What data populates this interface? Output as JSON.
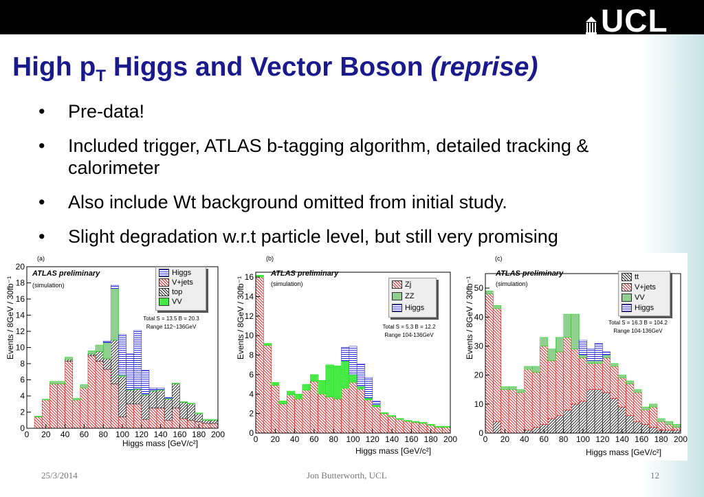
{
  "slide": {
    "title_main": "High p",
    "title_sub": "T",
    "title_rest": " Higgs and Vector Boson ",
    "title_italic": "(reprise)",
    "logo": "UCL",
    "bullets": [
      "Pre-data!",
      "Included trigger, ATLAS b-tagging algorithm, detailed tracking & calorimeter",
      "Also include Wt background omitted from initial study.",
      "Slight degradation w.r.t particle level, but still very promising"
    ],
    "footer_date": "25/3/2014",
    "footer_author": "Jon Butterworth, UCL",
    "footer_page": "12"
  },
  "colors": {
    "higgs": "#2a2ad8",
    "vjets": "#e02020",
    "top": "#222222",
    "vv": "#22dd22",
    "zj": "#e02020",
    "zz": "#22dd22",
    "tt": "#222222",
    "title": "#1a1a8c"
  },
  "chart_data": [
    {
      "type": "bar",
      "panel": "(a)",
      "atlas": "ATLAS preliminary",
      "sim": "(simulation)",
      "totals": "Total S = 13.5 B = 20.3",
      "range": "Range 112~136GeV",
      "xlabel": "Higgs mass [GeV/c²]",
      "ylabel": "Events / 8GeV / 30fb⁻¹",
      "xlim": [
        0,
        200
      ],
      "ylim": [
        0,
        20
      ],
      "x_ticks": [
        0,
        20,
        40,
        60,
        80,
        100,
        120,
        140,
        160,
        180,
        200
      ],
      "y_ticks": [
        0,
        2,
        4,
        6,
        8,
        10,
        12,
        14,
        16,
        18,
        20
      ],
      "bin_width": 8,
      "x_start": 0,
      "legend": [
        "Higgs",
        "V+jets",
        "top",
        "VV"
      ],
      "series": [
        {
          "name": "V+jets",
          "values": [
            0,
            1.4,
            3.5,
            5.5,
            5.5,
            8.3,
            3.5,
            5.0,
            9.0,
            8.3,
            7.3,
            5.5,
            1.4,
            3.0,
            3.0,
            1.1,
            2.5,
            2.5,
            1.0,
            2.5,
            1.2,
            1.0,
            0.8,
            0.6,
            0.6
          ]
        },
        {
          "name": "top",
          "values": [
            0,
            0,
            0,
            0,
            0,
            0.2,
            0,
            0,
            0.2,
            1.2,
            1.3,
            5.4,
            5.0,
            1.7,
            1.8,
            3.0,
            2.1,
            2.2,
            2.6,
            3.0,
            2.0,
            2.0,
            1.0,
            0.4,
            0.4
          ]
        },
        {
          "name": "VV",
          "values": [
            0,
            0.1,
            0.1,
            0.3,
            0.3,
            0.3,
            0.2,
            0.4,
            0.4,
            0.8,
            2.0,
            6.4,
            0.2,
            0.1,
            0.1,
            0.1,
            0.1,
            0.1,
            0.1,
            0.1,
            0.1,
            0.1,
            0.1,
            0.1,
            0.1
          ]
        },
        {
          "name": "Higgs",
          "values": [
            0,
            0,
            0,
            0,
            0,
            0,
            0,
            0,
            0,
            0,
            0.2,
            0.4,
            5.0,
            4.4,
            7.2,
            3.0,
            0.3,
            0.2,
            0.1,
            0,
            0,
            0,
            0,
            0,
            0
          ]
        }
      ]
    },
    {
      "type": "bar",
      "panel": "(b)",
      "atlas": "ATLAS preliminary",
      "sim": "(simulation)",
      "totals": "Total S = 5.3 B = 12.2",
      "range": "Range 104-136GeV",
      "xlabel": "Higgs mass [GeV/c²]",
      "ylabel": "Events / 8GeV / 30fb⁻¹",
      "xlim": [
        0,
        200
      ],
      "ylim": [
        0,
        16.5
      ],
      "x_ticks": [
        0,
        20,
        40,
        60,
        80,
        100,
        120,
        140,
        160,
        180,
        200
      ],
      "y_ticks": [
        0,
        2,
        4,
        6,
        8,
        10,
        12,
        14,
        16
      ],
      "bin_width": 8,
      "x_start": 0,
      "legend": [
        "Zj",
        "ZZ",
        "Higgs"
      ],
      "series": [
        {
          "name": "Zj",
          "values": [
            16,
            9,
            4.9,
            3.0,
            3.9,
            3.5,
            4.4,
            5.3,
            4.0,
            3.7,
            3.5,
            4.6,
            5.2,
            4.5,
            3.4,
            2.7,
            2.0,
            1.7,
            1.4,
            1.2,
            1.1,
            1.0,
            0.8,
            0.6,
            0.6
          ]
        },
        {
          "name": "ZZ",
          "values": [
            0.2,
            0.2,
            0.3,
            0.3,
            0.4,
            0.5,
            0.6,
            0.7,
            1.4,
            3.3,
            3.4,
            2.8,
            0.8,
            0.3,
            0.2,
            0.2,
            0.1,
            0.1,
            0.1,
            0.1,
            0.1,
            0.1,
            0.1,
            0.1,
            0.1
          ]
        },
        {
          "name": "Higgs",
          "values": [
            0,
            0,
            0,
            0,
            0,
            0,
            0,
            0,
            0,
            0,
            0,
            1.4,
            2.9,
            2.3,
            2.1,
            0.4,
            0,
            0,
            0,
            0,
            0,
            0,
            0,
            0,
            0
          ]
        }
      ]
    },
    {
      "type": "bar",
      "panel": "(c)",
      "atlas": "ATLAS preliminary",
      "sim": "(simulation)",
      "totals": "Total S = 16.3 B = 104.2",
      "range": "Range 104-136GeV",
      "xlabel": "Higgs mass [GeV/c²]",
      "ylabel": "Events / 8GeV / 30fb⁻¹",
      "xlim": [
        0,
        200
      ],
      "ylim": [
        0,
        55
      ],
      "x_ticks": [
        0,
        20,
        40,
        60,
        80,
        100,
        120,
        140,
        160,
        180,
        200
      ],
      "y_ticks": [
        0,
        10,
        20,
        30,
        40,
        50
      ],
      "bin_width": 8,
      "x_start": 0,
      "legend": [
        "tt",
        "V+jets",
        "VV",
        "Higgs"
      ],
      "series": [
        {
          "name": "tt",
          "values": [
            0,
            4,
            0,
            0,
            0,
            1,
            2,
            3,
            5,
            6,
            8,
            10,
            11,
            15,
            15,
            14,
            12,
            9,
            6,
            4,
            3,
            2,
            1,
            1,
            1
          ]
        },
        {
          "name": "V+jets",
          "values": [
            48,
            39,
            15,
            15,
            14,
            21,
            19,
            27,
            20,
            22,
            25,
            19,
            15,
            9,
            9,
            12,
            11,
            10,
            11,
            10,
            5,
            7,
            3,
            2,
            1
          ]
        },
        {
          "name": "VV",
          "values": [
            1,
            1,
            1,
            1,
            1,
            1,
            2,
            3,
            4,
            5,
            8,
            12,
            1,
            1,
            1,
            1,
            1,
            1,
            1,
            1,
            1,
            1,
            1,
            1,
            1
          ]
        },
        {
          "name": "Higgs",
          "values": [
            0,
            0,
            0,
            0,
            0,
            0,
            0,
            0,
            0,
            0,
            0,
            0,
            5,
            4,
            6,
            1,
            0,
            0,
            0,
            0,
            0,
            0,
            0,
            0,
            0
          ]
        }
      ]
    }
  ]
}
